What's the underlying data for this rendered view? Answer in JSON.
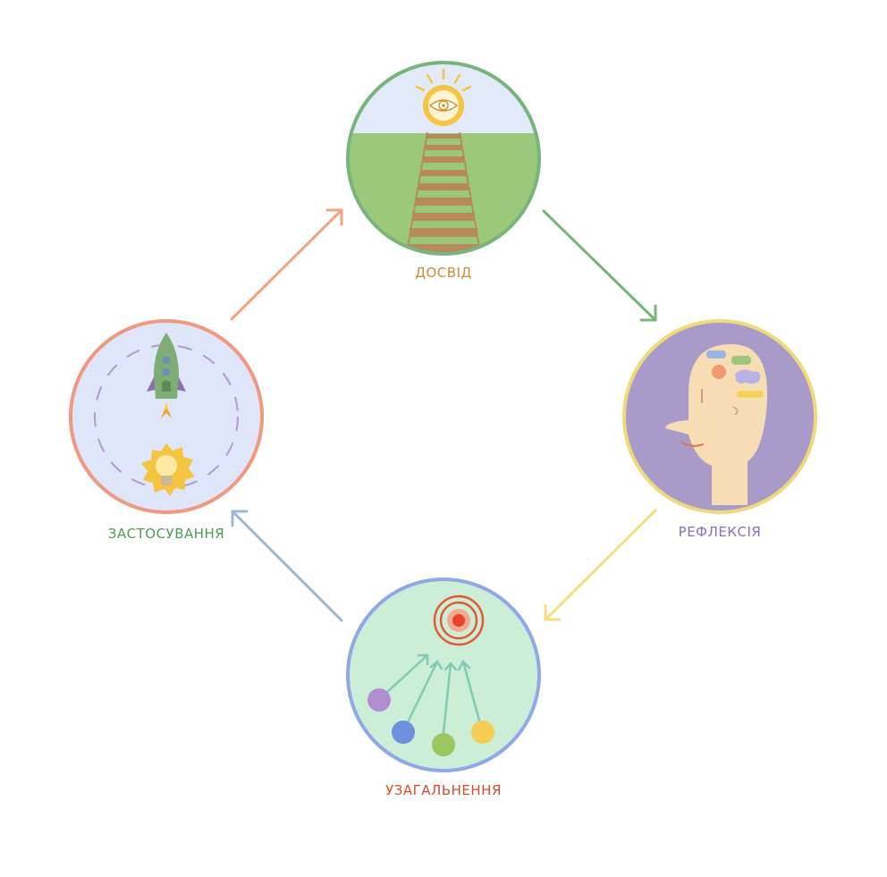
{
  "diagram": {
    "stages": {
      "experience": {
        "label": "ДОСВІД",
        "color": "#c98a3a",
        "ring": "#78b57a"
      },
      "reflection": {
        "label": "РЕФЛЕКСІЯ",
        "color": "#8a6fb8",
        "ring": "#f0d97a"
      },
      "generalization": {
        "label": "УЗАГАЛЬНЕННЯ",
        "color": "#d94a2a",
        "ring": "#8fa8e6"
      },
      "application": {
        "label": "ЗАСТОСУВАННЯ",
        "color": "#4f9a55",
        "ring": "#ef9a7e"
      }
    },
    "arrows": {
      "experience_to_reflection": "#78b57a",
      "reflection_to_generalization": "#f5df7a",
      "generalization_to_application": "#9ab6dc",
      "application_to_experience": "#f5a182"
    }
  }
}
